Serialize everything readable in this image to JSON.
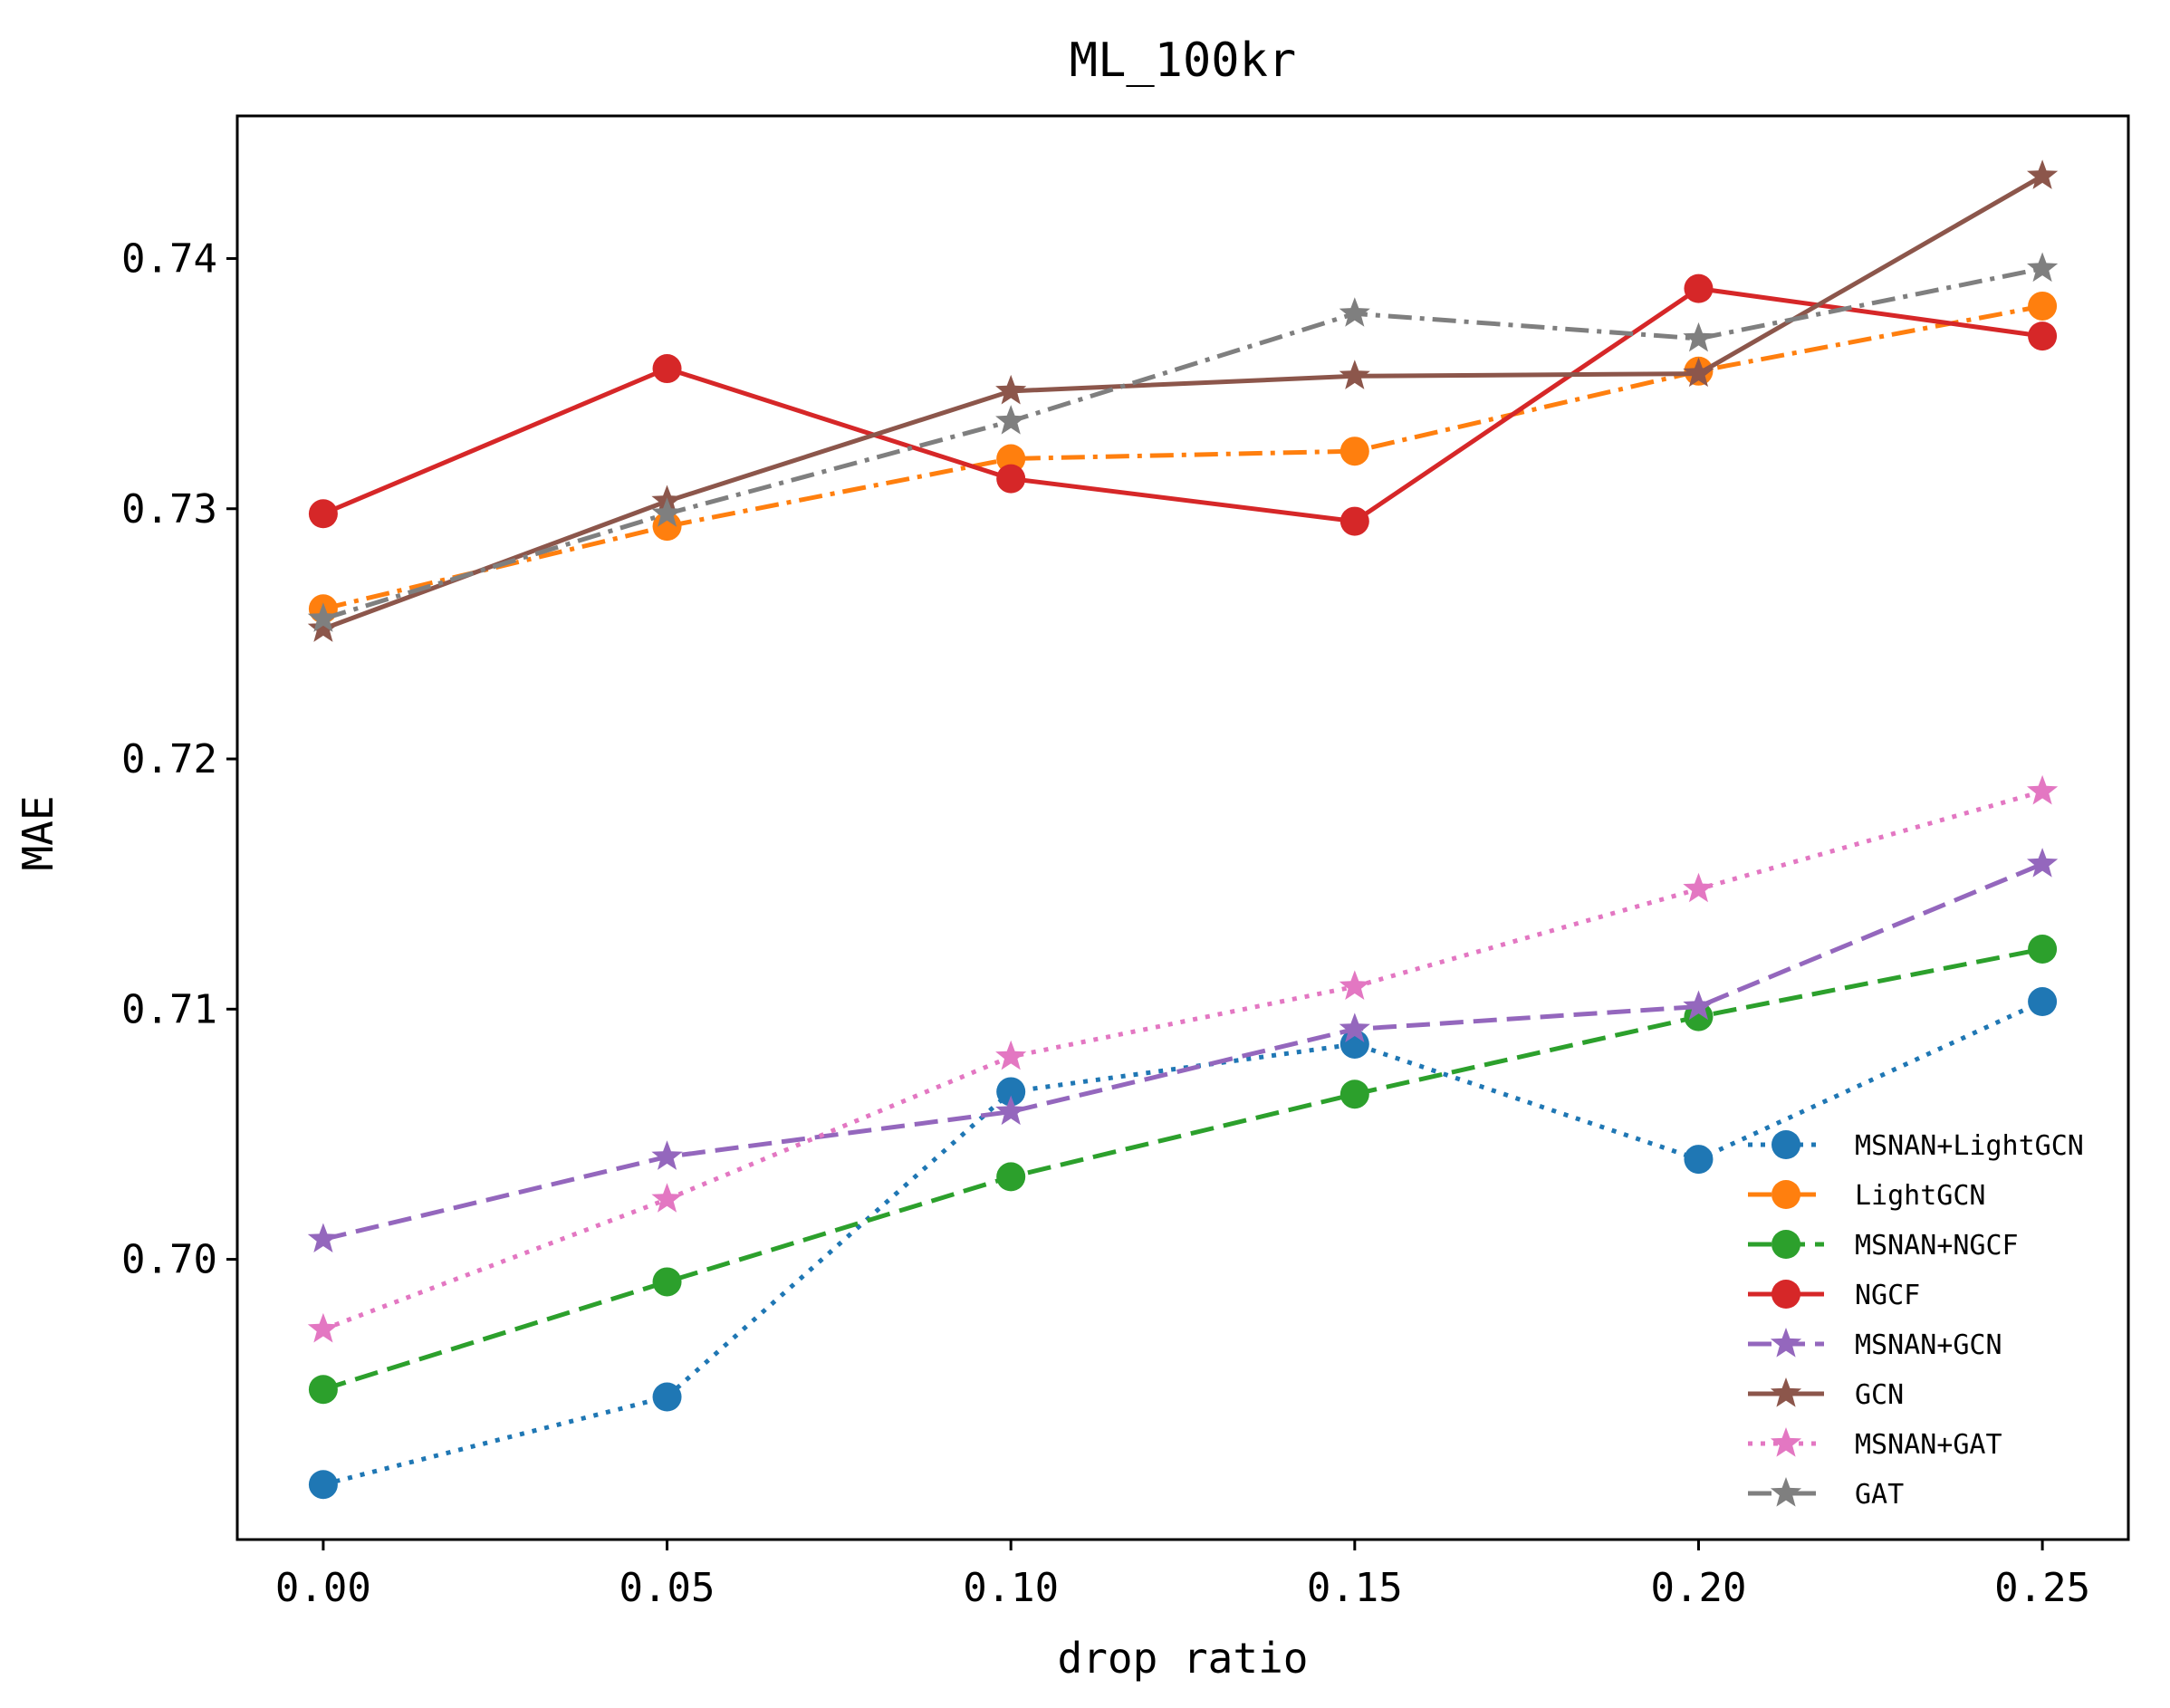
{
  "chart_data": {
    "type": "line",
    "title": "ML_100kr",
    "xlabel": "drop ratio",
    "ylabel": "MAE",
    "x": [
      0.0,
      0.05,
      0.1,
      0.15,
      0.2,
      0.25
    ],
    "x_tick_labels": [
      "0.00",
      "0.05",
      "0.10",
      "0.15",
      "0.20",
      "0.25"
    ],
    "y_ticks": [
      0.7,
      0.71,
      0.72,
      0.73,
      0.74
    ],
    "y_tick_labels": [
      "0.70",
      "0.71",
      "0.72",
      "0.73",
      "0.74"
    ],
    "xlim": [
      -0.0125,
      0.2625
    ],
    "ylim": [
      0.6888,
      0.7457
    ],
    "grid": false,
    "legend_position": "lower-right",
    "series": [
      {
        "name": "MSNAN+LightGCN",
        "color": "#1f77b4",
        "dash": "dotted",
        "marker": "circle",
        "values": [
          0.691,
          0.6945,
          0.7067,
          0.7086,
          0.704,
          0.7103
        ]
      },
      {
        "name": "LightGCN",
        "color": "#ff7f0e",
        "dash": "dashdot",
        "marker": "circle",
        "values": [
          0.726,
          0.7293,
          0.732,
          0.7323,
          0.7355,
          0.7381
        ]
      },
      {
        "name": "MSNAN+NGCF",
        "color": "#2ca02c",
        "dash": "dashed",
        "marker": "circle",
        "values": [
          0.6948,
          0.6991,
          0.7033,
          0.7066,
          0.7097,
          0.7124
        ]
      },
      {
        "name": "NGCF",
        "color": "#d62728",
        "dash": "solid",
        "marker": "circle",
        "values": [
          0.7298,
          0.7356,
          0.7312,
          0.7295,
          0.7388,
          0.7369
        ]
      },
      {
        "name": "MSNAN+GCN",
        "color": "#9467bd",
        "dash": "dashed",
        "marker": "star",
        "values": [
          0.7008,
          0.7041,
          0.7059,
          0.7092,
          0.7101,
          0.7158
        ]
      },
      {
        "name": "GCN",
        "color": "#8c564b",
        "dash": "solid",
        "marker": "star",
        "values": [
          0.7252,
          0.7303,
          0.7347,
          0.7353,
          0.7354,
          0.7433
        ]
      },
      {
        "name": "MSNAN+GAT",
        "color": "#e377c2",
        "dash": "dotted",
        "marker": "star",
        "values": [
          0.6972,
          0.7024,
          0.7081,
          0.7109,
          0.7148,
          0.7187
        ]
      },
      {
        "name": "GAT",
        "color": "#7f7f7f",
        "dash": "dashdot",
        "marker": "star",
        "values": [
          0.7256,
          0.7298,
          0.7335,
          0.7378,
          0.7368,
          0.7396
        ]
      }
    ]
  }
}
